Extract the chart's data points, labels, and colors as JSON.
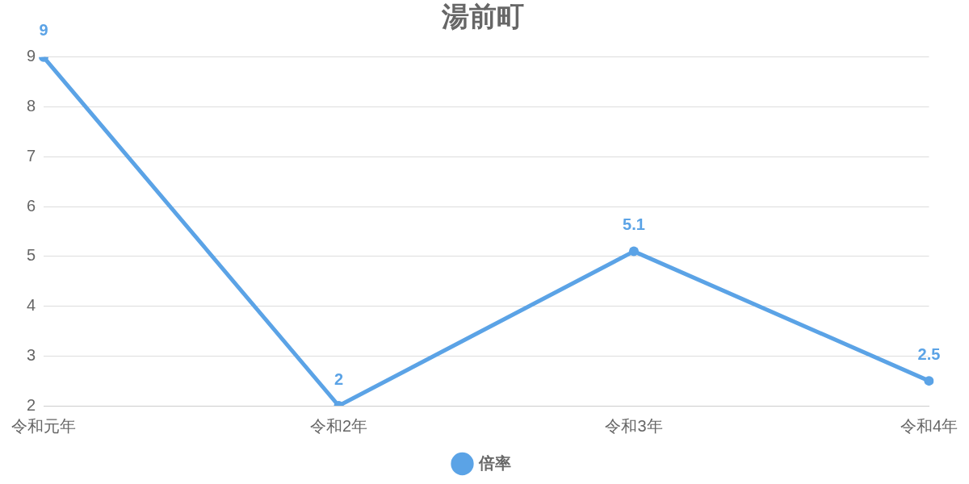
{
  "chart_data": {
    "type": "line",
    "title": "湯前町",
    "categories": [
      "令和元年",
      "令和2年",
      "令和3年",
      "令和4年"
    ],
    "series": [
      {
        "name": "倍率",
        "color": "#5ba3e6",
        "values": [
          9,
          2,
          5.1,
          2.5
        ]
      }
    ],
    "ylim": [
      2,
      9
    ],
    "yticks": [
      2,
      3,
      4,
      5,
      6,
      7,
      8,
      9
    ],
    "grid": "y",
    "legend": "bottom",
    "marker": "circle",
    "line_style": "solid",
    "data_labels": true
  }
}
